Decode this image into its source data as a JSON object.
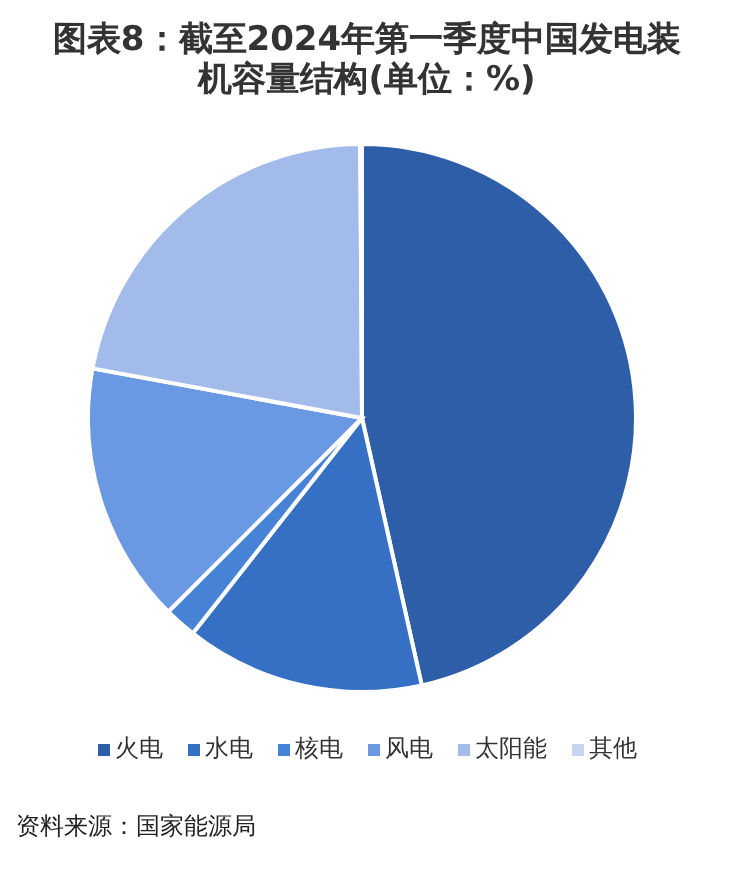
{
  "chart_data": {
    "type": "pie",
    "title": "图表8：截至2024年第一季度中国发电装机容量结构(单位：%)",
    "categories": [
      "火电",
      "水电",
      "核电",
      "风电",
      "太阳能",
      "其他"
    ],
    "values": [
      46.5,
      14.1,
      1.9,
      15.4,
      22.0,
      0.1
    ],
    "colors": [
      "#2e5ea8",
      "#3670c4",
      "#4683d6",
      "#6a98e2",
      "#a2bbeb",
      "#c7d5f3"
    ],
    "legend": "bottom",
    "annotations": [
      "资料来源：国家能源局"
    ]
  }
}
